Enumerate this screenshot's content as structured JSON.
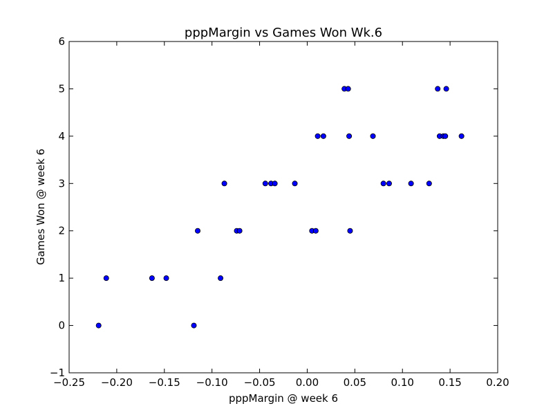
{
  "chart_data": {
    "type": "scatter",
    "title": "pppMargin vs Games Won Wk.6",
    "xlabel": "pppMargin @ week 6",
    "ylabel": "Games Won @ week 6",
    "xlim": [
      -0.25,
      0.2
    ],
    "ylim": [
      -1,
      6
    ],
    "xticks": [
      -0.25,
      -0.2,
      -0.15,
      -0.1,
      -0.05,
      0.0,
      0.05,
      0.1,
      0.15,
      0.2
    ],
    "xtick_labels": [
      "−0.25",
      "−0.20",
      "−0.15",
      "−0.10",
      "−0.05",
      "0.00",
      "0.05",
      "0.10",
      "0.15",
      "0.20"
    ],
    "yticks": [
      -1,
      0,
      1,
      2,
      3,
      4,
      5,
      6
    ],
    "ytick_labels": [
      "−1",
      "0",
      "1",
      "2",
      "3",
      "4",
      "5",
      "6"
    ],
    "grid": false,
    "point_color": "#0000ff",
    "x": [
      -0.219,
      -0.211,
      -0.163,
      -0.148,
      -0.119,
      -0.115,
      -0.091,
      -0.087,
      -0.074,
      -0.071,
      -0.044,
      -0.038,
      -0.034,
      -0.013,
      0.005,
      0.009,
      0.011,
      0.017,
      0.039,
      0.043,
      0.044,
      0.045,
      0.069,
      0.08,
      0.086,
      0.109,
      0.128,
      0.137,
      0.139,
      0.143,
      0.145,
      0.146,
      0.162
    ],
    "y": [
      0,
      1,
      1,
      1,
      0,
      2,
      1,
      3,
      2,
      2,
      3,
      3,
      3,
      3,
      2,
      2,
      4,
      4,
      5,
      5,
      4,
      2,
      4,
      3,
      3,
      3,
      3,
      5,
      4,
      4,
      4,
      5,
      4
    ]
  }
}
